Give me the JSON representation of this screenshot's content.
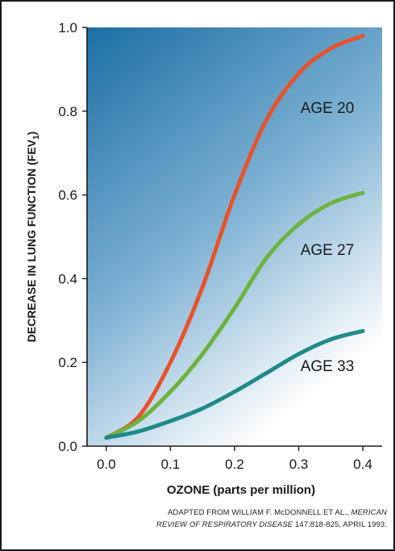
{
  "chart_data": {
    "type": "line",
    "title": "",
    "xlabel": "OZONE (parts per million)",
    "ylabel": "DECREASE IN LUNG FUNCTION (FEV",
    "ylabel_subscript": "1",
    "ylabel_close": ")",
    "xlim": [
      -0.03,
      0.43
    ],
    "ylim": [
      0.0,
      1.0
    ],
    "x_ticks": [
      "0.0",
      "0.1",
      "0.2",
      "0.3",
      "0.4"
    ],
    "y_ticks": [
      "0.0",
      "0.2",
      "0.4",
      "0.6",
      "0.8",
      "1.0"
    ],
    "grid": false,
    "series": [
      {
        "name": "AGE 20",
        "color": "#e8522b",
        "x": [
          0.0,
          0.05,
          0.1,
          0.15,
          0.2,
          0.25,
          0.3,
          0.35,
          0.4
        ],
        "y": [
          0.02,
          0.07,
          0.2,
          0.38,
          0.6,
          0.78,
          0.89,
          0.95,
          0.98
        ]
      },
      {
        "name": "AGE 27",
        "color": "#6db33f",
        "x": [
          0.0,
          0.05,
          0.1,
          0.15,
          0.2,
          0.25,
          0.3,
          0.35,
          0.4
        ],
        "y": [
          0.02,
          0.06,
          0.13,
          0.22,
          0.33,
          0.45,
          0.53,
          0.58,
          0.605
        ]
      },
      {
        "name": "AGE 33",
        "color": "#1f8a8a",
        "x": [
          0.0,
          0.05,
          0.1,
          0.15,
          0.2,
          0.25,
          0.3,
          0.35,
          0.4
        ],
        "y": [
          0.02,
          0.035,
          0.06,
          0.09,
          0.13,
          0.175,
          0.22,
          0.255,
          0.275
        ]
      }
    ]
  },
  "source": {
    "line1_prefix": "ADAPTED FROM WILLIAM F. McDONNELL ET AL., ",
    "line1_italic": "MERICAN",
    "line2_italic": "REVIEW OF RESPIRATORY DISEASE",
    "line2_suffix": " 147:818-825, APRIL 1993."
  },
  "colors": {
    "plot_bg_top": "#1c6fa5",
    "plot_bg_bottom": "#ffffff",
    "text": "#1a1a1a"
  }
}
